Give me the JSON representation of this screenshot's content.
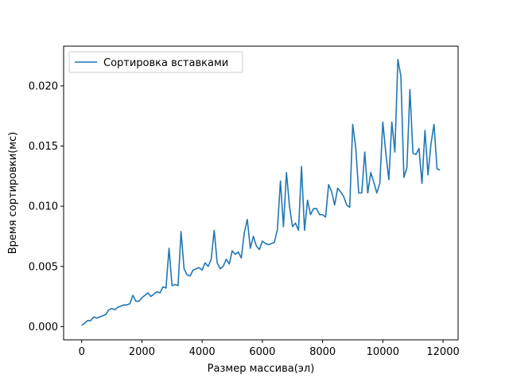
{
  "chart_data": {
    "type": "line",
    "title": "",
    "xlabel": "Размер массива(эл)",
    "ylabel": "Время сортировки(мс)",
    "xlim": [
      -600,
      12500
    ],
    "ylim": [
      -0.0011,
      0.0233
    ],
    "xticks": [
      0,
      2000,
      4000,
      6000,
      8000,
      10000,
      12000
    ],
    "yticks": [
      0.0,
      0.005,
      0.01,
      0.015,
      0.02
    ],
    "xtick_labels": [
      "0",
      "2000",
      "4000",
      "6000",
      "8000",
      "10000",
      "12000"
    ],
    "ytick_labels": [
      "0.000",
      "0.005",
      "0.010",
      "0.015",
      "0.020"
    ],
    "grid": false,
    "legend_position": "top-left",
    "series": [
      {
        "name": "Сортировка вставками",
        "color": "#1f77b4",
        "x": [
          0,
          100,
          200,
          300,
          400,
          500,
          600,
          700,
          800,
          900,
          1000,
          1100,
          1200,
          1300,
          1400,
          1500,
          1600,
          1700,
          1800,
          1900,
          2000,
          2100,
          2200,
          2300,
          2400,
          2500,
          2600,
          2700,
          2800,
          2900,
          3000,
          3100,
          3200,
          3300,
          3400,
          3500,
          3600,
          3700,
          3800,
          3900,
          4000,
          4100,
          4200,
          4300,
          4400,
          4500,
          4600,
          4700,
          4800,
          4900,
          5000,
          5100,
          5200,
          5300,
          5400,
          5500,
          5600,
          5700,
          5800,
          5900,
          6000,
          6100,
          6200,
          6300,
          6400,
          6500,
          6600,
          6700,
          6800,
          6900,
          7000,
          7100,
          7200,
          7300,
          7400,
          7500,
          7600,
          7700,
          7800,
          7900,
          8000,
          8100,
          8200,
          8300,
          8400,
          8500,
          8600,
          8700,
          8800,
          8900,
          9000,
          9100,
          9200,
          9300,
          9400,
          9500,
          9600,
          9700,
          9800,
          9900,
          10000,
          10100,
          10200,
          10300,
          10400,
          10500,
          10600,
          10700,
          10800,
          10900,
          11000,
          11100,
          11200,
          11300,
          11400,
          11500,
          11600,
          11700,
          11800,
          11900
        ],
        "y": [
          0.0001,
          0.0003,
          0.0005,
          0.0005,
          0.0008,
          0.0007,
          0.0008,
          0.0009,
          0.001,
          0.0014,
          0.0015,
          0.0014,
          0.0016,
          0.0017,
          0.0018,
          0.0018,
          0.0019,
          0.0026,
          0.0021,
          0.0021,
          0.0024,
          0.0026,
          0.0028,
          0.0025,
          0.0027,
          0.0029,
          0.0028,
          0.0033,
          0.0032,
          0.0065,
          0.0034,
          0.0035,
          0.0034,
          0.0079,
          0.0048,
          0.0043,
          0.0042,
          0.0047,
          0.0048,
          0.0049,
          0.0047,
          0.0053,
          0.005,
          0.0056,
          0.008,
          0.0053,
          0.0048,
          0.005,
          0.0056,
          0.0052,
          0.0063,
          0.006,
          0.0062,
          0.0057,
          0.0078,
          0.0089,
          0.0065,
          0.0075,
          0.0067,
          0.0064,
          0.0071,
          0.0069,
          0.0068,
          0.0069,
          0.007,
          0.0081,
          0.0121,
          0.0083,
          0.0128,
          0.01,
          0.0083,
          0.0086,
          0.008,
          0.0133,
          0.008,
          0.0105,
          0.0093,
          0.0098,
          0.0098,
          0.0093,
          0.0093,
          0.0091,
          0.0118,
          0.0112,
          0.0101,
          0.0115,
          0.0112,
          0.0108,
          0.0101,
          0.0099,
          0.0168,
          0.0149,
          0.0111,
          0.0111,
          0.0145,
          0.0111,
          0.0128,
          0.012,
          0.0111,
          0.0119,
          0.017,
          0.0144,
          0.0122,
          0.017,
          0.0145,
          0.0222,
          0.0208,
          0.0124,
          0.0132,
          0.0197,
          0.0144,
          0.0143,
          0.0148,
          0.0119,
          0.0163,
          0.0126,
          0.0152,
          0.0168,
          0.0131,
          0.013
        ]
      }
    ]
  }
}
